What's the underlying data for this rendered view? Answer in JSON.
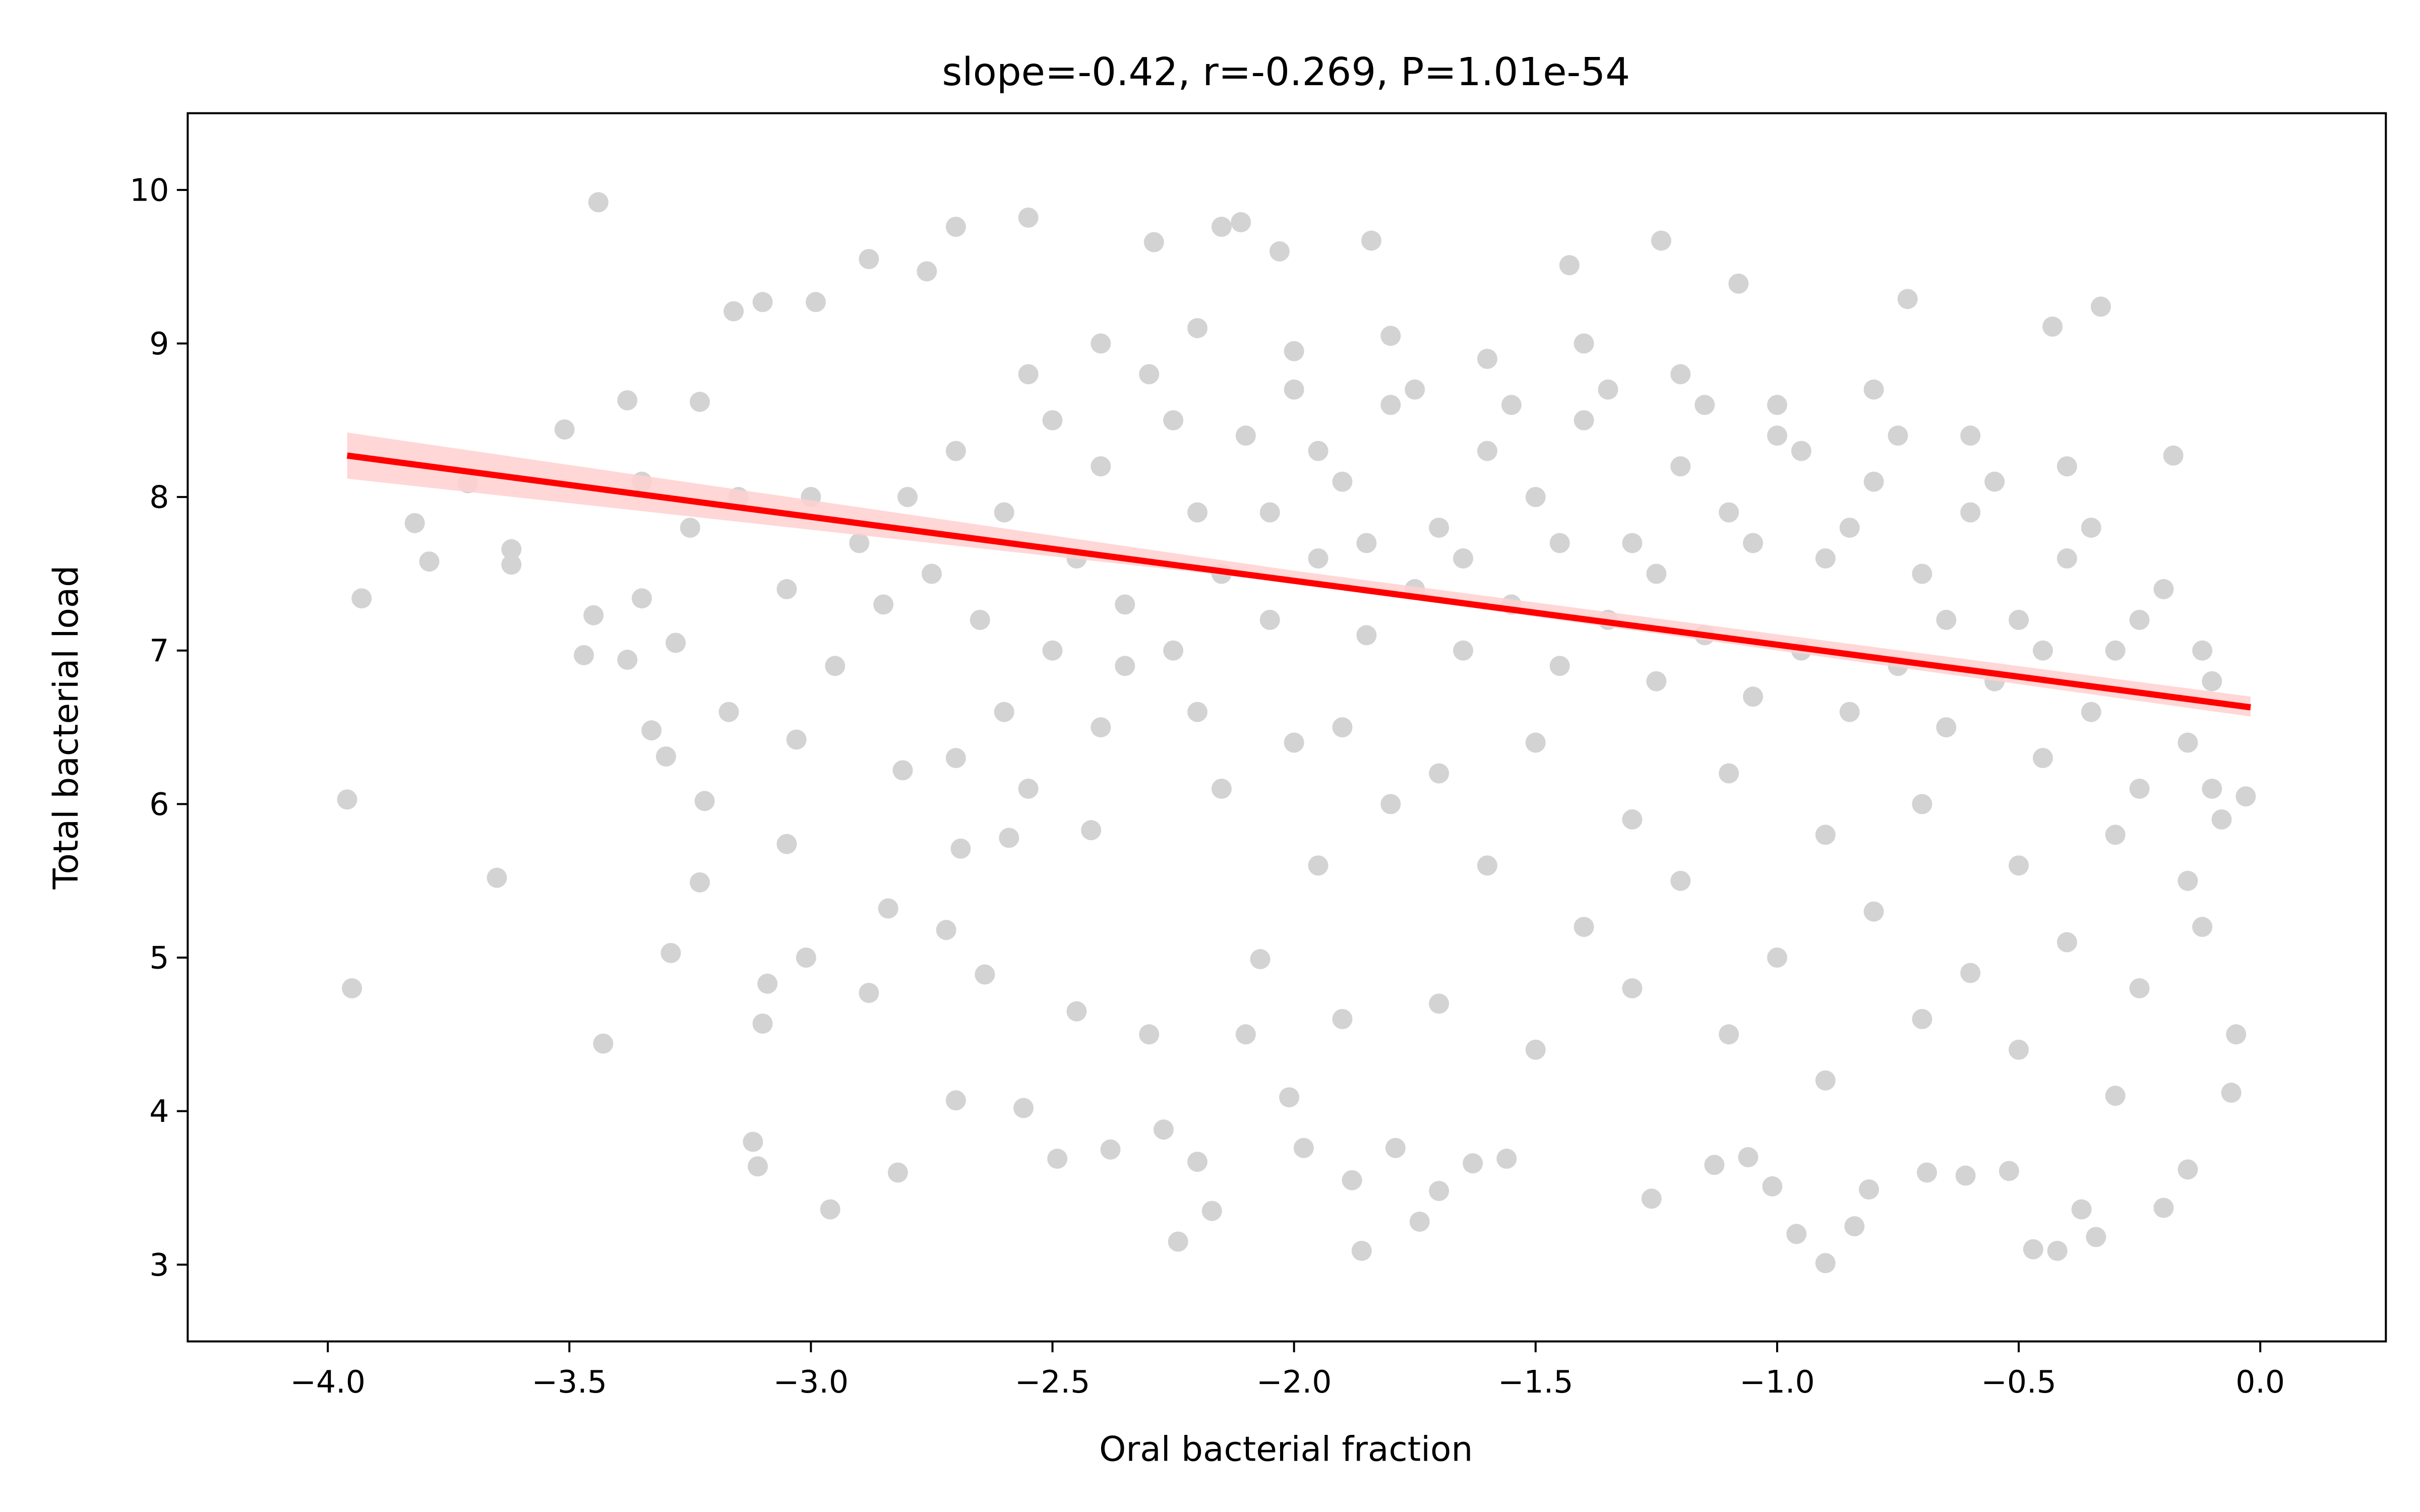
{
  "chart_data": {
    "type": "scatter",
    "title": "slope=-0.42, r=-0.269, P=1.01e-54",
    "xlabel": "Oral bacterial fraction",
    "ylabel": "Total bacterial load",
    "xlim": [
      -4.29,
      0.26
    ],
    "ylim": [
      2.5,
      10.5
    ],
    "xticks": [
      {
        "value": -4,
        "label": "−4.0"
      },
      {
        "value": -3.5,
        "label": "−3.5"
      },
      {
        "value": -3,
        "label": "−3.0"
      },
      {
        "value": -2.5,
        "label": "−2.5"
      },
      {
        "value": -2,
        "label": "−2.0"
      },
      {
        "value": -1.5,
        "label": "−1.5"
      },
      {
        "value": -1,
        "label": "−1.0"
      },
      {
        "value": -0.5,
        "label": "−0.5"
      },
      {
        "value": 0,
        "label": "0.0"
      }
    ],
    "yticks": [
      3,
      4,
      5,
      6,
      7,
      8,
      9,
      10
    ],
    "x": [
      -3.96,
      -3.95,
      -3.93,
      -3.82,
      -3.79,
      -3.71,
      -3.65,
      -3.62,
      -3.62,
      -3.51,
      -3.44,
      -3.43,
      -3.38,
      -3.47,
      -3.45,
      -3.38,
      -3.35,
      -3.33,
      -3.29,
      -3.28,
      -3.3,
      -3.22,
      -3.23,
      -3.23,
      -3.17,
      -3.16,
      -3.12,
      -3.11,
      -3.1,
      -3.09,
      -3.1,
      -3.05,
      -3.03,
      -3.01,
      -2.99,
      -2.96,
      -2.88,
      -2.88,
      -2.84,
      -2.82,
      -2.81,
      -2.76,
      -2.7,
      -2.7,
      -2.72,
      -2.69,
      -2.64,
      -2.59,
      -2.56,
      -2.55,
      -2.49,
      -2.45,
      -2.42,
      -2.38,
      -2.29,
      -2.27,
      -2.24,
      -2.2,
      -2.17,
      -2.11,
      -2.15,
      -2.07,
      -2.03,
      -2.01,
      -1.98,
      -1.88,
      -1.86,
      -1.84,
      -1.79,
      -1.74,
      -1.7,
      -1.63,
      -1.56,
      -1.43,
      -1.26,
      -1.24,
      -1.13,
      -1.06,
      -1.01,
      -1.08,
      -0.96,
      -0.9,
      -0.84,
      -0.81,
      -0.73,
      -0.69,
      -0.61,
      -0.52,
      -0.47,
      -0.42,
      -0.37,
      -0.34,
      -0.33,
      -0.43,
      -0.2,
      -0.18,
      -0.15,
      -0.05,
      -0.06,
      -0.03,
      -2.5,
      -2.4,
      -2.3,
      -2.2,
      -2.1,
      -2.0,
      -1.9,
      -1.8,
      -1.7,
      -1.6,
      -1.5,
      -1.4,
      -1.3,
      -1.2,
      -1.1,
      -1.0,
      -0.9,
      -0.8,
      -0.7,
      -0.6,
      -0.5,
      -0.4,
      -0.3,
      -0.2,
      -0.1,
      -2.45,
      -2.35,
      -2.25,
      -2.15,
      -2.05,
      -1.95,
      -1.85,
      -1.75,
      -1.65,
      -1.55,
      -1.45,
      -1.35,
      -1.25,
      -1.15,
      -1.05,
      -0.95,
      -0.85,
      -0.75,
      -0.65,
      -0.55,
      -0.45,
      -0.35,
      -0.25,
      -0.15,
      -0.08,
      -2.4,
      -2.2,
      -2.0,
      -1.8,
      -1.6,
      -1.4,
      -1.2,
      -1.0,
      -0.8,
      -0.6,
      -0.4,
      -1.9,
      -1.7,
      -1.5,
      -1.3,
      -1.1,
      -0.9,
      -0.7,
      -0.5,
      -0.3,
      -0.15,
      -0.1,
      -1.6,
      -1.4,
      -1.2,
      -1.0,
      -0.8,
      -0.6,
      -0.4,
      -0.25,
      -0.12,
      -1.7,
      -1.5,
      -1.3,
      -1.1,
      -0.9,
      -0.7,
      -0.5,
      -0.3,
      -1.9,
      -2.1,
      -2.3,
      -2.8,
      -2.7,
      -2.6,
      -2.9,
      -3.0,
      -2.75,
      -2.65,
      -2.85,
      -2.95,
      -3.05,
      -3.15,
      -3.25,
      -3.35,
      -2.55,
      -2.5,
      -2.6,
      -2.7,
      -2.4,
      -2.2,
      -2.0,
      -1.8,
      -2.15,
      -1.95,
      -2.35,
      -2.55,
      -1.15,
      -0.95,
      -0.75,
      -0.55,
      -0.35,
      -1.35,
      -1.55,
      -1.75,
      -1.95,
      -2.25,
      -1.05,
      -0.85,
      -0.65,
      -0.45,
      -0.25,
      -0.12,
      -1.25,
      -1.45,
      -1.65,
      -1.85,
      -2.05
    ],
    "series": [
      {
        "color": "#d3d3d3",
        "values": [
          6.03,
          4.8,
          7.34,
          7.83,
          7.58,
          8.09,
          5.52,
          7.66,
          7.56,
          8.44,
          9.92,
          4.44,
          8.63,
          6.97,
          7.23,
          6.94,
          7.34,
          6.48,
          5.03,
          7.05,
          6.31,
          6.02,
          5.49,
          8.62,
          6.6,
          9.21,
          3.8,
          3.64,
          4.57,
          4.83,
          9.27,
          5.74,
          6.42,
          5.0,
          9.27,
          3.36,
          9.55,
          4.77,
          5.32,
          3.6,
          6.22,
          9.47,
          9.76,
          4.07,
          5.18,
          5.71,
          4.89,
          5.78,
          4.02,
          9.82,
          3.69,
          4.65,
          5.83,
          3.75,
          9.66,
          3.88,
          3.15,
          3.67,
          3.35,
          9.79,
          9.76,
          4.99,
          9.6,
          4.09,
          3.76,
          3.55,
          3.09,
          9.67,
          3.76,
          3.28,
          3.48,
          3.66,
          3.69,
          9.51,
          3.43,
          9.67,
          3.65,
          3.7,
          3.51,
          9.39,
          3.2,
          3.01,
          3.25,
          3.49,
          9.29,
          3.6,
          3.58,
          3.61,
          3.1,
          3.09,
          3.36,
          3.18,
          9.24,
          9.11,
          3.37,
          8.27,
          3.62,
          4.5,
          4.12,
          6.05,
          8.5,
          8.2,
          8.8,
          7.9,
          8.4,
          8.7,
          8.1,
          8.6,
          7.8,
          8.3,
          8.0,
          8.5,
          7.7,
          8.2,
          7.9,
          8.4,
          7.6,
          8.1,
          7.5,
          7.9,
          7.2,
          7.6,
          7.0,
          7.4,
          6.8,
          7.6,
          7.3,
          7.0,
          7.5,
          7.2,
          7.6,
          7.1,
          7.4,
          7.0,
          7.3,
          6.9,
          7.2,
          6.8,
          7.1,
          6.7,
          7.0,
          6.6,
          6.9,
          6.5,
          6.8,
          6.3,
          6.6,
          6.1,
          6.4,
          5.9,
          9.0,
          9.1,
          8.95,
          9.05,
          8.9,
          9.0,
          8.8,
          8.6,
          8.7,
          8.4,
          8.2,
          6.5,
          6.2,
          6.4,
          5.9,
          6.2,
          5.8,
          6.0,
          5.6,
          5.8,
          5.5,
          6.1,
          5.6,
          5.2,
          5.5,
          5.0,
          5.3,
          4.9,
          5.1,
          4.8,
          5.2,
          4.7,
          4.4,
          4.8,
          4.5,
          4.2,
          4.6,
          4.4,
          4.1,
          4.6,
          4.5,
          4.5,
          8.0,
          8.3,
          7.9,
          7.7,
          8.0,
          7.5,
          7.2,
          7.3,
          6.9,
          7.4,
          8.0,
          7.8,
          8.1,
          8.8,
          7.0,
          6.6,
          6.3,
          6.5,
          6.6,
          6.4,
          6.0,
          6.1,
          5.6,
          6.9,
          6.1,
          8.6,
          8.3,
          8.4,
          8.1,
          7.8,
          8.7,
          8.6,
          8.7,
          8.3,
          8.5,
          7.7,
          7.8,
          7.2,
          7.0,
          7.2,
          7.0,
          7.5,
          7.7,
          7.6,
          7.7,
          7.9
        ]
      }
    ],
    "fit_band": {
      "color": "#ffd0d0",
      "x": [
        -3.96,
        -2.0,
        -0.02
      ],
      "lower": [
        8.12,
        7.44,
        6.57
      ],
      "upper": [
        8.42,
        7.52,
        6.7
      ]
    },
    "fit": {
      "color": "#ff0000",
      "x": [
        -3.96,
        -0.02
      ],
      "values": [
        8.27,
        6.63
      ]
    }
  }
}
